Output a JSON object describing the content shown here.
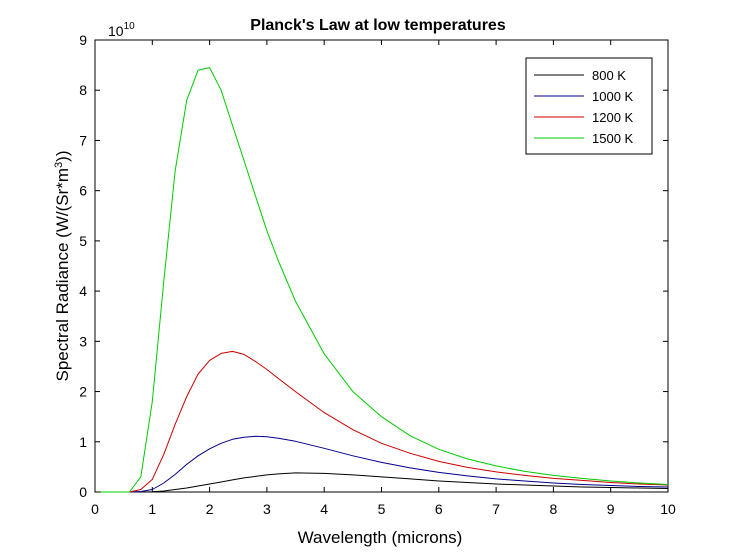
{
  "chart_data": {
    "type": "line",
    "title": "Planck's Law at low temperatures",
    "xlabel": "Wavelength (microns)",
    "ylabel_main": "Spectral Radiance (W/(Sr*m",
    "ylabel_sup": "3",
    "ylabel_close": "))",
    "xlim": [
      0,
      10
    ],
    "ylim": [
      0,
      9
    ],
    "x_ticks": [
      0,
      1,
      2,
      3,
      4,
      5,
      6,
      7,
      8,
      9,
      10
    ],
    "y_ticks": [
      0,
      1,
      2,
      3,
      4,
      5,
      6,
      7,
      8,
      9
    ],
    "y_multiplier_base": "10",
    "y_multiplier_exp": "10",
    "legend_position": "top-right",
    "x": [
      0.1,
      0.6,
      0.8,
      1.0,
      1.2,
      1.4,
      1.6,
      1.8,
      2.0,
      2.2,
      2.4,
      2.6,
      2.8,
      3.0,
      3.2,
      3.5,
      4.0,
      4.5,
      5.0,
      5.5,
      6.0,
      6.5,
      7.0,
      7.5,
      8.0,
      8.5,
      9.0,
      9.5,
      10.0
    ],
    "series": [
      {
        "name": "800 K",
        "color": "#000000",
        "values": [
          0,
          0,
          0.001,
          0.005,
          0.02,
          0.05,
          0.08,
          0.12,
          0.16,
          0.2,
          0.24,
          0.28,
          0.31,
          0.34,
          0.36,
          0.38,
          0.37,
          0.34,
          0.3,
          0.26,
          0.22,
          0.19,
          0.16,
          0.14,
          0.12,
          0.1,
          0.09,
          0.08,
          0.07
        ]
      },
      {
        "name": "1000 K",
        "color": "#00008b",
        "values": [
          0,
          0,
          0.01,
          0.05,
          0.18,
          0.35,
          0.55,
          0.72,
          0.86,
          0.97,
          1.05,
          1.09,
          1.11,
          1.1,
          1.07,
          1.01,
          0.87,
          0.72,
          0.59,
          0.48,
          0.39,
          0.32,
          0.26,
          0.22,
          0.18,
          0.15,
          0.13,
          0.11,
          0.1
        ]
      },
      {
        "name": "1200 K",
        "color": "#cc0000",
        "values": [
          0,
          0,
          0.05,
          0.25,
          0.75,
          1.35,
          1.9,
          2.35,
          2.62,
          2.76,
          2.8,
          2.74,
          2.6,
          2.44,
          2.26,
          2.0,
          1.58,
          1.24,
          0.97,
          0.77,
          0.61,
          0.49,
          0.4,
          0.33,
          0.27,
          0.23,
          0.19,
          0.16,
          0.14
        ]
      },
      {
        "name": "1500 K",
        "color": "#00cc00",
        "values": [
          0,
          0,
          0.3,
          1.8,
          4.2,
          6.4,
          7.8,
          8.4,
          8.45,
          8.0,
          7.3,
          6.6,
          5.9,
          5.2,
          4.6,
          3.8,
          2.75,
          2.0,
          1.5,
          1.12,
          0.85,
          0.66,
          0.52,
          0.41,
          0.33,
          0.27,
          0.22,
          0.18,
          0.15
        ]
      }
    ]
  }
}
